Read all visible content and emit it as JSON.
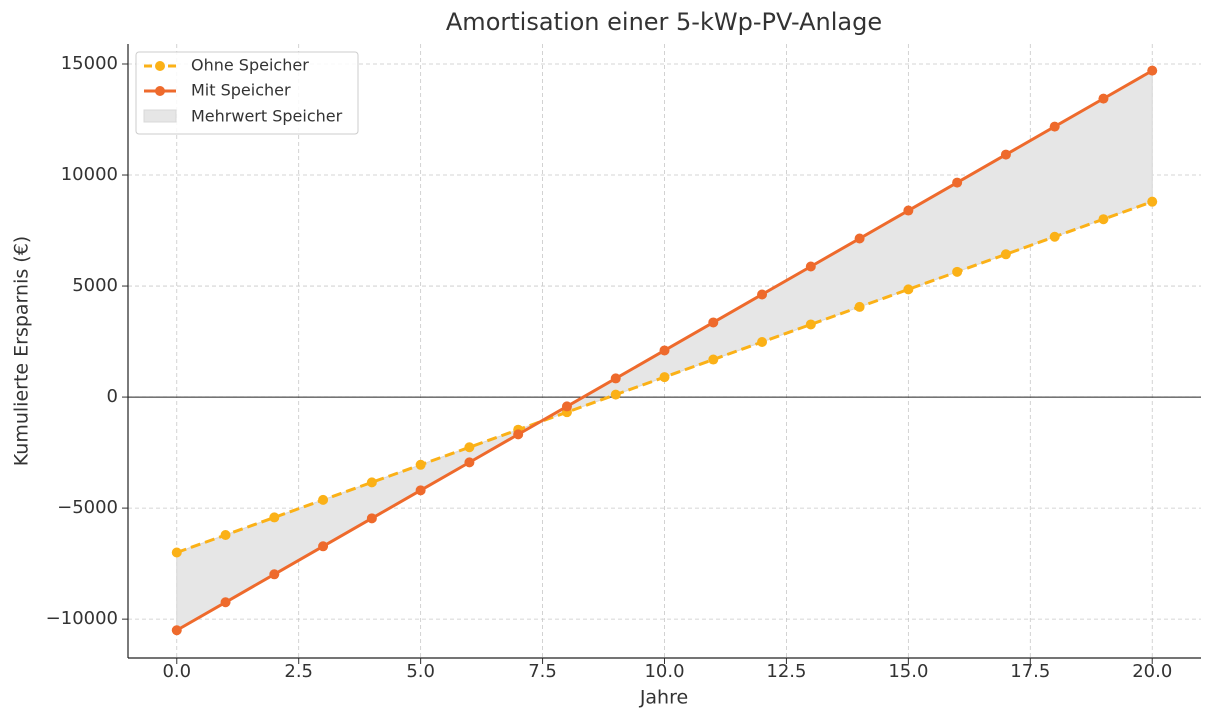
{
  "chart_data": {
    "type": "line",
    "title": "Amortisation einer 5-kWp-PV-Anlage",
    "xlabel": "Jahre",
    "ylabel": "Kumulierte Ersparnis (€)",
    "x": [
      0,
      1,
      2,
      3,
      4,
      5,
      6,
      7,
      8,
      9,
      10,
      11,
      12,
      13,
      14,
      15,
      16,
      17,
      18,
      19,
      20
    ],
    "series": [
      {
        "name": "Ohne Speicher",
        "color": "#fbb117",
        "dash": true,
        "values": [
          -7000,
          -6210,
          -5420,
          -4630,
          -3840,
          -3050,
          -2260,
          -1470,
          -680,
          110,
          900,
          1690,
          2480,
          3270,
          4060,
          4850,
          5640,
          6430,
          7220,
          8010,
          8800
        ]
      },
      {
        "name": "Mit Speicher",
        "color": "#ee6a2c",
        "dash": false,
        "values": [
          -10500,
          -9240,
          -7980,
          -6720,
          -5460,
          -4200,
          -2940,
          -1680,
          -420,
          840,
          2100,
          3360,
          4620,
          5880,
          7140,
          8400,
          9660,
          10920,
          12180,
          13440,
          14700
        ]
      }
    ],
    "fill_between": {
      "name": "Mehrwert Speicher",
      "color": "#e6e6e6"
    },
    "xlim": [
      -1,
      21
    ],
    "xticks": [
      {
        "value": 0,
        "label": "0.0"
      },
      {
        "value": 2.5,
        "label": "2.5"
      },
      {
        "value": 5,
        "label": "5.0"
      },
      {
        "value": 7.5,
        "label": "7.5"
      },
      {
        "value": 10,
        "label": "10.0"
      },
      {
        "value": 12.5,
        "label": "12.5"
      },
      {
        "value": 15,
        "label": "15.0"
      },
      {
        "value": 17.5,
        "label": "17.5"
      },
      {
        "value": 20,
        "label": "20.0"
      }
    ],
    "ylim": [
      -11750,
      15900
    ],
    "yticks": [
      {
        "value": -10000,
        "label": "−10000"
      },
      {
        "value": -5000,
        "label": "−5000"
      },
      0,
      5000,
      10000,
      15000
    ],
    "zero_line": true,
    "grid": true,
    "legend": "upper left"
  }
}
